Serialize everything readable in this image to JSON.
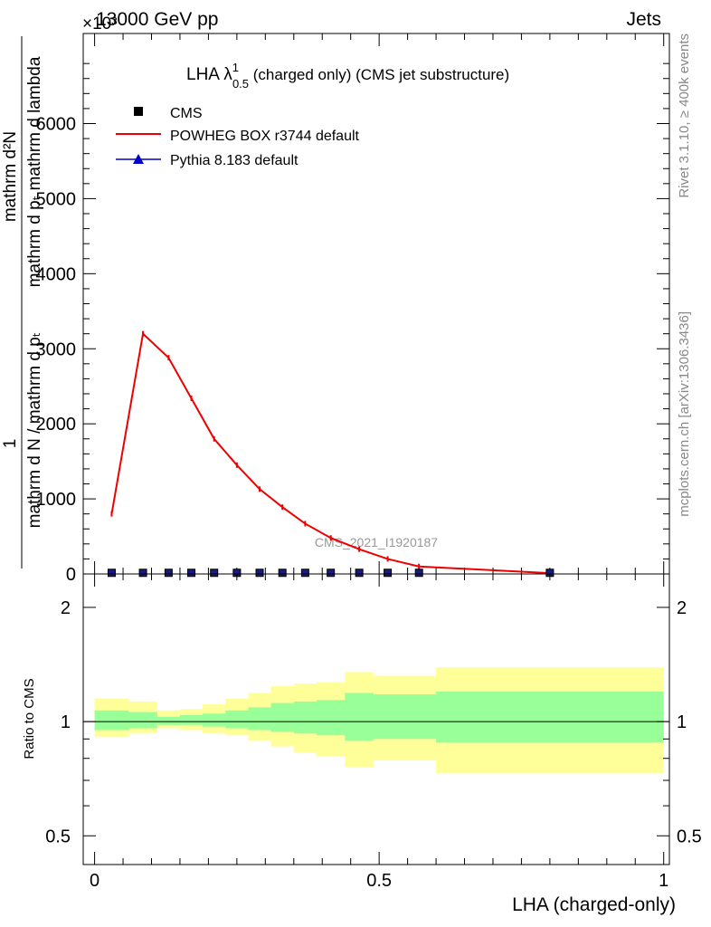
{
  "header": {
    "collision": "13000 GeV pp",
    "category": "Jets",
    "exponent": "×10³"
  },
  "side_labels": {
    "rivet": "Rivet 3.1.10, ≥ 400k events",
    "mcplots": "mcplots.cern.ch [arXiv:1306.3436]"
  },
  "watermark": "CMS_2021_I1920187",
  "chart_data": [
    {
      "type": "line",
      "panel": "main",
      "title": {
        "main": "LHA λ",
        "superscript": "1",
        "subscript": "0.5",
        "rest": " (charged only) (CMS jet substructure)"
      },
      "ylabel": {
        "numerator": "mathrm d²N",
        "denominator": "mathrm d pₜ mathrm d lambda",
        "prefix_num": "1",
        "prefix_den": "mathrm d N / mathrm d pₜ"
      },
      "ylim": [
        0,
        7200
      ],
      "yticks": [
        0,
        1000,
        2000,
        3000,
        4000,
        5000,
        6000
      ],
      "ytick_labels": [
        "0",
        "1000",
        "2000",
        "3000",
        "4000",
        "5000",
        "6000"
      ],
      "legend": {
        "position": "top-left",
        "entries": [
          "CMS",
          "POWHEG BOX r3744 default",
          "Pythia 8.183 default"
        ]
      },
      "series": [
        {
          "name": "CMS",
          "marker": "square",
          "color": "#000000",
          "x": [
            0.03,
            0.085,
            0.13,
            0.17,
            0.21,
            0.25,
            0.29,
            0.33,
            0.37,
            0.415,
            0.465,
            0.515,
            0.57,
            0.8
          ],
          "y": [
            15,
            15,
            15,
            15,
            15,
            15,
            15,
            15,
            15,
            15,
            15,
            15,
            15,
            15
          ]
        },
        {
          "name": "POWHEG BOX r3744 default",
          "marker": "line",
          "color": "#ee0000",
          "x": [
            0.03,
            0.085,
            0.13,
            0.17,
            0.21,
            0.25,
            0.29,
            0.33,
            0.37,
            0.415,
            0.465,
            0.515,
            0.57,
            0.8
          ],
          "y": [
            800,
            3200,
            2880,
            2340,
            1800,
            1450,
            1130,
            890,
            670,
            480,
            330,
            200,
            100,
            10
          ]
        },
        {
          "name": "Pythia 8.183 default",
          "marker": "triangle",
          "color": "#0000cc",
          "x": [],
          "y": []
        }
      ]
    },
    {
      "type": "area",
      "panel": "ratio",
      "ylabel": "Ratio to CMS",
      "xlabel": "LHA (charged-only)",
      "xlim": [
        -0.02,
        1.01
      ],
      "xticks": [
        0,
        0.5,
        1
      ],
      "xtick_labels": [
        "0",
        "0.5",
        "1"
      ],
      "ylim_log": [
        0.42,
        2.45
      ],
      "yticks": [
        0.5,
        1,
        2
      ],
      "ytick_labels": [
        "0.5",
        "1",
        "2"
      ],
      "bins": [
        0,
        0.06,
        0.11,
        0.15,
        0.19,
        0.23,
        0.27,
        0.31,
        0.35,
        0.39,
        0.44,
        0.49,
        0.54,
        0.6,
        1
      ],
      "inner_band": {
        "color": "#99ff99",
        "low": [
          0.95,
          0.96,
          0.98,
          0.98,
          0.97,
          0.96,
          0.95,
          0.94,
          0.93,
          0.92,
          0.89,
          0.9,
          0.9,
          0.88
        ],
        "high": [
          1.07,
          1.06,
          1.03,
          1.04,
          1.05,
          1.07,
          1.09,
          1.12,
          1.13,
          1.14,
          1.19,
          1.18,
          1.18,
          1.2
        ]
      },
      "outer_band": {
        "color": "#ffff99",
        "low": [
          0.91,
          0.93,
          0.96,
          0.95,
          0.93,
          0.92,
          0.89,
          0.86,
          0.83,
          0.81,
          0.76,
          0.79,
          0.79,
          0.73
        ],
        "high": [
          1.15,
          1.13,
          1.07,
          1.08,
          1.11,
          1.15,
          1.19,
          1.24,
          1.26,
          1.27,
          1.35,
          1.32,
          1.32,
          1.39
        ]
      }
    }
  ]
}
